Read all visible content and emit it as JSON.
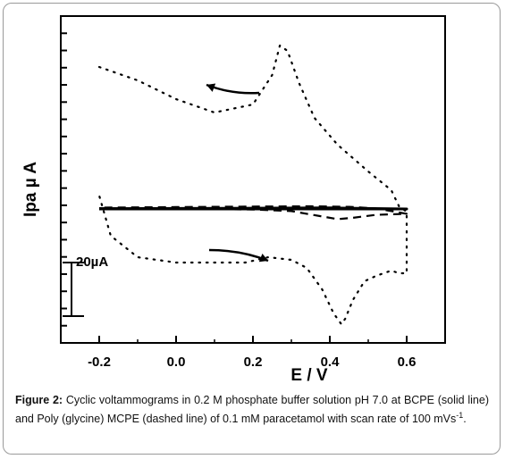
{
  "chart_data": {
    "type": "line",
    "title": "",
    "xlabel": "E / V",
    "ylabel": "Ipa µ A",
    "xlim": [
      -0.3,
      0.7
    ],
    "ylim": [
      -50,
      72
    ],
    "x_ticks": [
      "-0.2",
      "0.0",
      "0.2",
      "0.4",
      "0.6"
    ],
    "x_tick_values": [
      -0.2,
      0.0,
      0.2,
      0.4,
      0.6
    ],
    "scale_bar_label": "20µA",
    "grid": false,
    "legend": "none",
    "series": [
      {
        "style": "solid",
        "x": [
          -0.2,
          0.0,
          0.2,
          0.4,
          0.6,
          0.4,
          0.2,
          0.0,
          -0.2
        ],
        "y": [
          0,
          0,
          0,
          0,
          0,
          0.4,
          0.3,
          0.2,
          0.1
        ]
      },
      {
        "style": "dashed",
        "x": [
          -0.2,
          0.0,
          0.2,
          0.3,
          0.38,
          0.42,
          0.46,
          0.52,
          0.6,
          0.52,
          0.45,
          0.35,
          0.2,
          0.0,
          -0.2
        ],
        "y": [
          0.3,
          0.1,
          -0.2,
          -0.8,
          -2.8,
          -3.8,
          -3.3,
          -2.2,
          -1.8,
          0.2,
          0.8,
          1.0,
          0.9,
          0.7,
          0.5
        ]
      },
      {
        "style": "dotted",
        "x": [
          -0.2,
          -0.1,
          0.0,
          0.1,
          0.2,
          0.25,
          0.27,
          0.29,
          0.32,
          0.36,
          0.42,
          0.5,
          0.56,
          0.58,
          0.6,
          0.6,
          0.58,
          0.56,
          0.52,
          0.49,
          0.46,
          0.44,
          0.43,
          0.41,
          0.38,
          0.34,
          0.3,
          0.24,
          0.18,
          0.1,
          0.0,
          -0.1,
          -0.17,
          -0.2
        ],
        "y": [
          53,
          48,
          41,
          36,
          39,
          50,
          61,
          59,
          47,
          34,
          24,
          14,
          7,
          1,
          -1,
          -24,
          -24,
          -23,
          -25,
          -27,
          -34,
          -41,
          -43,
          -39,
          -30,
          -22,
          -19,
          -18,
          -20,
          -20,
          -20,
          -18,
          -10,
          5
        ]
      }
    ],
    "annotations": [
      "arrow near upper loop pointing left",
      "arrow near lower loop pointing right"
    ]
  },
  "caption": {
    "figure_label": "Figure 2:",
    "text": " Cyclic voltammograms in 0.2 M phosphate buffer solution pH 7.0 at BCPE (solid line) and Poly (glycine) MCPE (dashed line) of 0.1 mM paracetamol with scan rate of 100 mVs",
    "sup": "-1",
    "end": "."
  }
}
